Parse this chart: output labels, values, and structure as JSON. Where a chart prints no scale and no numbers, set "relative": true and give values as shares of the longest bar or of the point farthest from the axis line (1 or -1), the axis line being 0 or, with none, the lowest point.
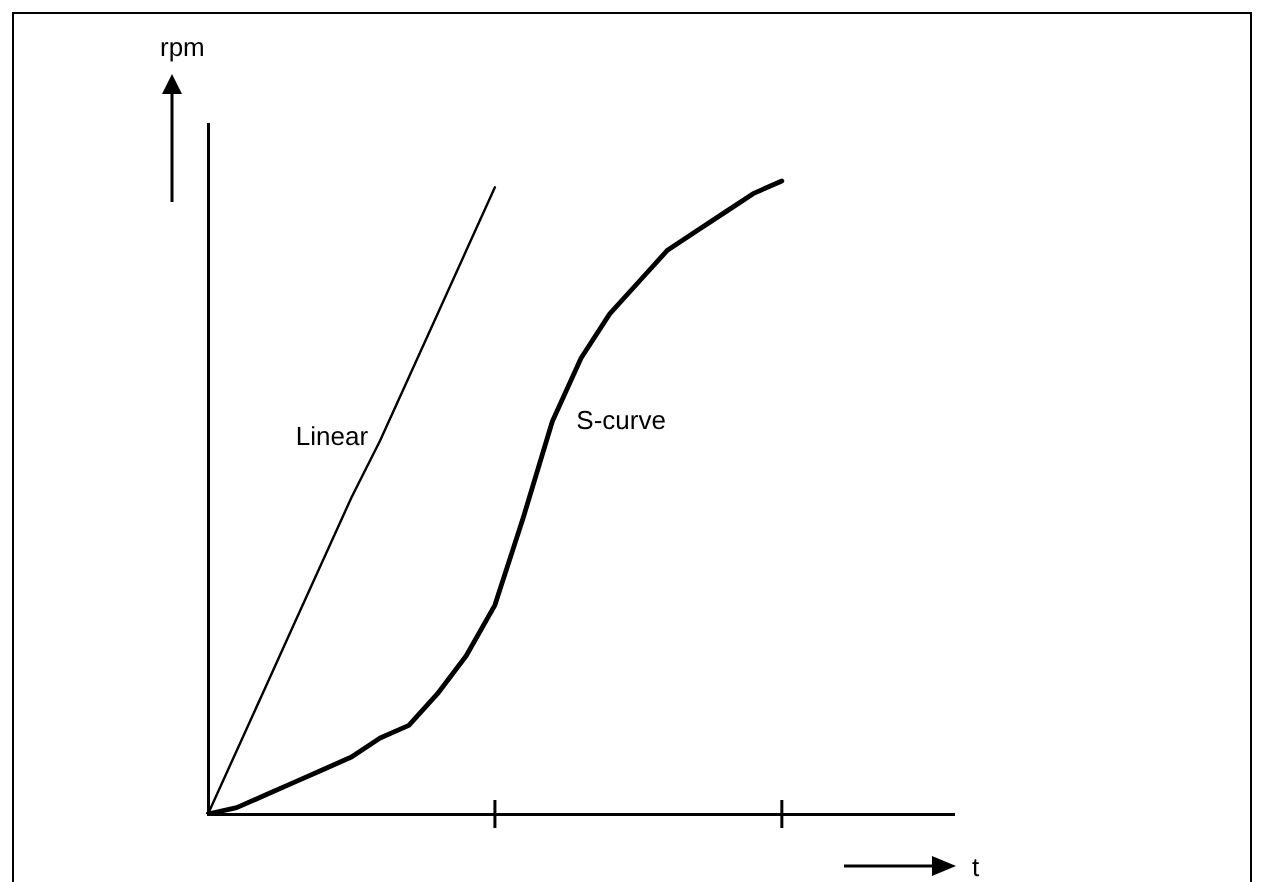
{
  "chart_data": {
    "type": "line",
    "relative": true,
    "xlabel": "t",
    "ylabel": "rpm",
    "categories": [
      null,
      null,
      null,
      null,
      null,
      null,
      null,
      null,
      null,
      null,
      null,
      null,
      null,
      null,
      null,
      null,
      null,
      null,
      null,
      null,
      null,
      null,
      null,
      null,
      null,
      null,
      null
    ],
    "grid": false,
    "legend": false,
    "marker": "none",
    "line_style": "solid",
    "series": [
      {
        "name": "Linear",
        "color": "#000000",
        "values": [
          0,
          0.1,
          0.2,
          0.3,
          0.4,
          0.5,
          0.59,
          0.69,
          0.79,
          0.89,
          0.99,
          null,
          null,
          null,
          null,
          null,
          null,
          null,
          null,
          null,
          null,
          null,
          null,
          null,
          null,
          null,
          null
        ]
      },
      {
        "name": "S-curve",
        "color": "#000000",
        "values": [
          0,
          0.01,
          0.03,
          0.05,
          0.07,
          0.09,
          0.12,
          0.14,
          0.19,
          0.25,
          0.33,
          0.47,
          0.62,
          0.72,
          0.79,
          0.84,
          0.89,
          0.92,
          0.95,
          0.98,
          1,
          null,
          null,
          null,
          null,
          null,
          null
        ]
      }
    ]
  }
}
